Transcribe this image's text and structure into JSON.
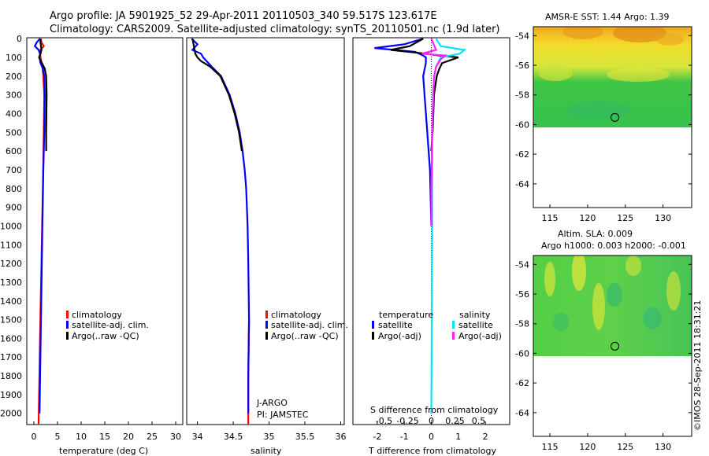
{
  "header": {
    "line1": "Argo profile: JA 5901925_52 29-Apr-2011 20110503_340 59.517S 123.617E",
    "line2": "Climatology: CARS2009. Satellite-adjusted climatology: synTS_20110501.nc (1.9d later)"
  },
  "side_stamp": "©IMOS 28-Sep-2011 18:31:21",
  "colors": {
    "climatology": "#ff0000",
    "satellite": "#0000ff",
    "argo": "#000000",
    "sal_satellite": "#00e5ff",
    "sal_argo": "#ff22ff"
  },
  "depth_ticks": [
    "0",
    "100",
    "200",
    "300",
    "400",
    "500",
    "600",
    "700",
    "800",
    "900",
    "1000",
    "1100",
    "1200",
    "1300",
    "1400",
    "1500",
    "1600",
    "1700",
    "1800",
    "1900",
    "2000"
  ],
  "chart_data": [
    {
      "type": "line",
      "name": "temperature-profile",
      "xlabel": "temperature (deg C)",
      "ylabel": "depth",
      "xlim": [
        -1.5,
        31.5
      ],
      "ylim": [
        2060,
        -5
      ],
      "xticks": [
        "0",
        "5",
        "10",
        "15",
        "20",
        "25",
        "30"
      ],
      "legend": [
        "climatology",
        "satellite-adj. clim.",
        "Argo(..raw -QC)"
      ],
      "series": [
        {
          "name": "climatology",
          "depth": [
            0,
            20,
            40,
            60,
            80,
            100,
            150,
            200,
            300,
            500,
            800,
            1200,
            1600,
            2060
          ],
          "values": [
            1.5,
            1.6,
            2.1,
            1.4,
            1.3,
            1.4,
            1.8,
            2.0,
            2.2,
            2.1,
            1.9,
            1.6,
            1.3,
            1.0
          ]
        },
        {
          "name": "satellite-adj. clim.",
          "depth": [
            0,
            20,
            40,
            60,
            80,
            100,
            130,
            160,
            200,
            300,
            500,
            700,
            1000,
            1500,
            2000
          ],
          "values": [
            1.3,
            0.6,
            0.2,
            1.0,
            1.3,
            1.2,
            1.4,
            1.9,
            2.2,
            2.3,
            2.2,
            2.0,
            1.8,
            1.5,
            1.2
          ]
        },
        {
          "name": "Argo(..raw -QC)",
          "depth": [
            0,
            20,
            40,
            60,
            80,
            100,
            130,
            160,
            200,
            300,
            500,
            600
          ],
          "values": [
            1.4,
            1.4,
            1.5,
            1.6,
            1.4,
            1.1,
            1.7,
            2.3,
            2.6,
            2.7,
            2.6,
            2.6
          ]
        }
      ]
    },
    {
      "type": "line",
      "name": "salinity-profile",
      "xlabel": "salinity",
      "xlim": [
        33.85,
        36.05
      ],
      "ylim": [
        2060,
        -5
      ],
      "xticks": [
        "34",
        "34.5",
        "35",
        "35.5",
        "36"
      ],
      "legend": [
        "climatology",
        "satellite-adj. clim.",
        "Argo(..raw -QC)"
      ],
      "annotations": [
        "J-ARGO",
        "PI: JAMSTEC"
      ],
      "series": [
        {
          "name": "climatology",
          "depth": [
            1500,
            1800,
            2060
          ],
          "values": [
            34.72,
            34.71,
            34.71
          ]
        },
        {
          "name": "satellite-adj. clim.",
          "depth": [
            0,
            30,
            60,
            80,
            100,
            150,
            200,
            300,
            400,
            500,
            600,
            700,
            800,
            1000,
            1200,
            1500,
            1800,
            2000
          ],
          "values": [
            33.92,
            34.0,
            33.93,
            34.05,
            34.08,
            34.2,
            34.33,
            34.45,
            34.53,
            34.59,
            34.63,
            34.66,
            34.68,
            34.7,
            34.71,
            34.72,
            34.71,
            34.71
          ]
        },
        {
          "name": "Argo(..raw -QC)",
          "depth": [
            0,
            40,
            80,
            100,
            120,
            150,
            200,
            300,
            400,
            500,
            600
          ],
          "values": [
            33.93,
            33.95,
            33.97,
            34.0,
            34.05,
            34.18,
            34.32,
            34.44,
            34.52,
            34.58,
            34.62
          ]
        }
      ]
    },
    {
      "type": "line",
      "name": "difference-from-climatology",
      "xlabel": "T difference from climatology",
      "top_label": "S difference from climatology",
      "xlim": [
        -2.9,
        2.9
      ],
      "ylim": [
        2060,
        -5
      ],
      "xticks_bottom": [
        "-2",
        "-1",
        "0",
        "1",
        "2"
      ],
      "xticks_top": [
        "-0.5",
        "-0.25",
        "0",
        "0.25",
        "0.5"
      ],
      "legend_headers": [
        "temperature",
        "salinity"
      ],
      "legend": [
        "satellite",
        "Argo(-adj)",
        "satellite",
        "Argo(-adj)"
      ],
      "series": [
        {
          "name": "temperature satellite",
          "depth": [
            0,
            30,
            50,
            70,
            90,
            100,
            130,
            200,
            300,
            500,
            700,
            1000
          ],
          "values": [
            -0.3,
            -1.0,
            -2.1,
            -0.6,
            -0.3,
            -0.2,
            -0.2,
            -0.3,
            -0.25,
            -0.15,
            -0.05,
            0.0
          ]
        },
        {
          "name": "temperature Argo(-adj)",
          "depth": [
            0,
            40,
            60,
            80,
            90,
            100,
            110,
            130,
            160,
            200,
            300,
            500,
            600
          ],
          "values": [
            -0.3,
            -0.8,
            -1.5,
            -0.2,
            0.3,
            1.0,
            0.8,
            0.4,
            0.3,
            0.2,
            0.1,
            0.05,
            0.0
          ]
        },
        {
          "name": "salinity satellite",
          "depth": [
            0,
            40,
            60,
            80,
            100,
            150,
            200,
            300,
            500,
            1000,
            2000
          ],
          "values": [
            0.05,
            0.1,
            0.35,
            0.3,
            0.1,
            0.05,
            0.03,
            0.02,
            0.01,
            0.01,
            0.0
          ]
        },
        {
          "name": "salinity Argo(-adj)",
          "depth": [
            0,
            60,
            80,
            90,
            110,
            150,
            200,
            300,
            500,
            800,
            1000
          ],
          "values": [
            0.0,
            0.05,
            -0.1,
            0.15,
            0.1,
            0.05,
            0.03,
            0.02,
            0.01,
            0.0,
            0.0
          ]
        }
      ]
    },
    {
      "type": "heatmap",
      "name": "sst-map",
      "title": "AMSR-E SST: 1.44 Argo: 1.39",
      "xticks": [
        "115",
        "120",
        "125",
        "130"
      ],
      "yticks": [
        "-54",
        "-56",
        "-58",
        "-60",
        "-62",
        "-64"
      ],
      "xlim": [
        112.8,
        133.8
      ],
      "ylim": [
        -65.6,
        -53.4
      ],
      "data_lat_range": [
        -60.1,
        -53.4
      ],
      "argo_position": [
        123.617,
        -59.517
      ]
    },
    {
      "type": "heatmap",
      "name": "sla-map",
      "title_line1": "Altim. SLA: 0.009",
      "title_line2": "Argo h1000: 0.003 h2000: -0.001",
      "xticks": [
        "115",
        "120",
        "125",
        "130"
      ],
      "yticks": [
        "-54",
        "-56",
        "-58",
        "-60",
        "-62",
        "-64"
      ],
      "xlim": [
        112.8,
        133.8
      ],
      "ylim": [
        -65.6,
        -53.4
      ],
      "data_lat_range": [
        -60.1,
        -53.4
      ],
      "argo_position": [
        123.617,
        -59.517
      ]
    }
  ]
}
